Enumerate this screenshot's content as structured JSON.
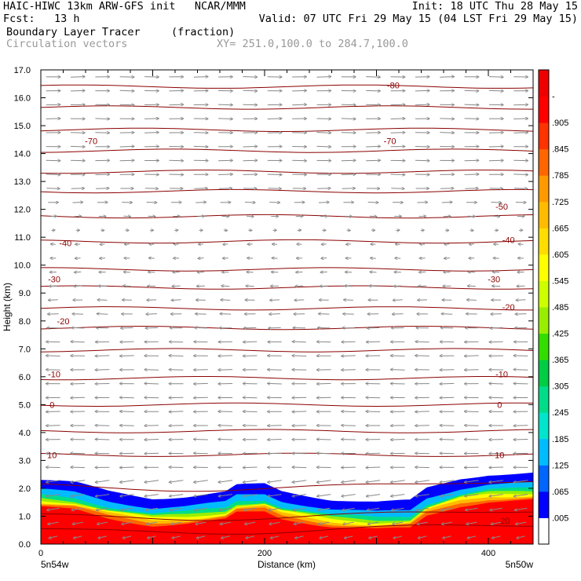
{
  "header": {
    "line1_left": "HAIC-HIWC 13km ARW-GFS init   NCAR/MMM",
    "line1_right": "Init: 18 UTC Thu 28 May 15",
    "line2_left": "Fcst:   13 h",
    "line2_right": "Valid: 07 UTC Fri 29 May 15 (04 LST Fri 29 May 15)",
    "field_name": "Boundary Layer Tracer",
    "field_units": "(fraction)",
    "vector_label": "Circulation vectors",
    "xy_label": "XY= 251.0,100.0 to 284.7,100.0"
  },
  "chart_data": {
    "type": "heatmap",
    "xlabel": "Distance (km)",
    "ylabel": "Height (km)",
    "xlim": [
      0,
      440
    ],
    "ylim": [
      0,
      17
    ],
    "x_ticks": [
      0,
      200,
      400
    ],
    "y_ticks": [
      "0.0",
      "1.0",
      "2.0",
      "3.0",
      "4.0",
      "5.0",
      "6.0",
      "7.0",
      "8.0",
      "9.0",
      "10.0",
      "11.0",
      "12.0",
      "13.0",
      "14.0",
      "15.0",
      "16.0",
      "17.0"
    ],
    "x_endpoints": {
      "left": "5n54w",
      "right": "5n50w"
    },
    "colorbar": {
      "labels": [
        ".005",
        ".065",
        ".125",
        ".185",
        ".245",
        ".305",
        ".365",
        ".425",
        ".485",
        ".545",
        ".605",
        ".665",
        ".725",
        ".785",
        ".845",
        ".905",
        "-"
      ],
      "colors": [
        "#ffffff",
        "#0000ff",
        "#0066ff",
        "#00bbff",
        "#00e5cc",
        "#00dd88",
        "#00cc44",
        "#33dd00",
        "#99ee00",
        "#ccff00",
        "#ffff00",
        "#ffdd00",
        "#ffbb00",
        "#ff9900",
        "#ff6600",
        "#ff3300",
        "#ff0000",
        "#ee0000"
      ]
    },
    "tracer_top_km": [
      [
        0,
        2.3
      ],
      [
        30,
        2.2
      ],
      [
        60,
        1.9
      ],
      [
        100,
        1.65
      ],
      [
        130,
        1.7
      ],
      [
        165,
        1.85
      ],
      [
        175,
        2.1
      ],
      [
        200,
        2.15
      ],
      [
        215,
        1.9
      ],
      [
        260,
        1.6
      ],
      [
        300,
        1.5
      ],
      [
        330,
        1.55
      ],
      [
        345,
        2.0
      ],
      [
        375,
        2.35
      ],
      [
        400,
        2.5
      ],
      [
        440,
        2.55
      ]
    ],
    "tracer_bands": [
      {
        "level": 0.065,
        "color": "#0000ff",
        "offset_km": 0.0
      },
      {
        "level": 0.185,
        "color": "#00bbff",
        "offset_km": 0.35
      },
      {
        "level": 0.305,
        "color": "#00dd88",
        "offset_km": 0.55
      },
      {
        "level": 0.425,
        "color": "#99ee00",
        "offset_km": 0.65
      },
      {
        "level": 0.545,
        "color": "#ffff00",
        "offset_km": 0.72
      },
      {
        "level": 0.665,
        "color": "#ffbb00",
        "offset_km": 0.8
      },
      {
        "level": 0.785,
        "color": "#ff6600",
        "offset_km": 0.88
      },
      {
        "level": 0.905,
        "color": "#ff0000",
        "offset_km": 0.98
      }
    ],
    "temperature_contour_labels": [
      {
        "x": 10,
        "y": 5.0,
        "text": "0"
      },
      {
        "x": 410,
        "y": 5.0,
        "text": "0"
      },
      {
        "x": 12,
        "y": 6.1,
        "text": "-10"
      },
      {
        "x": 412,
        "y": 6.1,
        "text": "-10"
      },
      {
        "x": 10,
        "y": 3.2,
        "text": "10"
      },
      {
        "x": 410,
        "y": 3.2,
        "text": "10"
      },
      {
        "x": 415,
        "y": 0.85,
        "text": "20"
      },
      {
        "x": 20,
        "y": 8.0,
        "text": "-20"
      },
      {
        "x": 418,
        "y": 8.5,
        "text": "-20"
      },
      {
        "x": 12,
        "y": 9.5,
        "text": "-30"
      },
      {
        "x": 405,
        "y": 9.5,
        "text": "-30"
      },
      {
        "x": 22,
        "y": 10.8,
        "text": "-40"
      },
      {
        "x": 418,
        "y": 10.9,
        "text": "-40"
      },
      {
        "x": 412,
        "y": 12.1,
        "text": "-50"
      },
      {
        "x": 45,
        "y": 14.45,
        "text": "-70"
      },
      {
        "x": 312,
        "y": 14.45,
        "text": "-70"
      },
      {
        "x": 315,
        "y": 16.45,
        "text": "-80"
      }
    ],
    "temperature_contour_heights_km": [
      0.55,
      1.05,
      2.1,
      3.2,
      4.05,
      5.0,
      5.95,
      6.95,
      7.75,
      8.45,
      9.2,
      9.85,
      10.85,
      11.75,
      12.65,
      13.35,
      14.1,
      14.85,
      15.65,
      16.4
    ],
    "wind_u_profile": [
      [
        0,
        -3
      ],
      [
        1,
        -6
      ],
      [
        2,
        -8
      ],
      [
        3,
        -9
      ],
      [
        4,
        -10
      ],
      [
        5,
        -10
      ],
      [
        6,
        -9
      ],
      [
        7,
        -8
      ],
      [
        8,
        -6
      ],
      [
        9,
        -4
      ],
      [
        10,
        -2
      ],
      [
        11,
        -1
      ],
      [
        12,
        4
      ],
      [
        13,
        8
      ],
      [
        14,
        9
      ],
      [
        15,
        9
      ],
      [
        16,
        9
      ],
      [
        17,
        8
      ]
    ]
  }
}
